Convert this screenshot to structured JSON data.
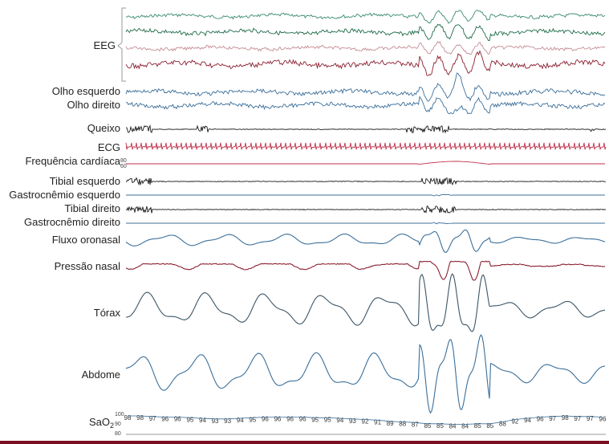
{
  "chart_data": {
    "type": "line",
    "title": "",
    "channels": [
      {
        "key": "eeg1",
        "label": "",
        "color": "#3a8a6e",
        "kind": "eeg"
      },
      {
        "key": "eeg2",
        "label": "",
        "color": "#1f6b4a",
        "kind": "eeg"
      },
      {
        "key": "eeg3",
        "label": "",
        "color": "#c48d95",
        "kind": "eeg"
      },
      {
        "key": "eeg4",
        "label": "",
        "color": "#8a1f30",
        "kind": "eeg"
      },
      {
        "key": "eye_left",
        "label": "Olho esquerdo",
        "color": "#3b6f9a",
        "kind": "eog"
      },
      {
        "key": "eye_right",
        "label": "Olho direito",
        "color": "#3b6f9a",
        "kind": "eog"
      },
      {
        "key": "chin",
        "label": "Queixo",
        "color": "#1c1c1c",
        "kind": "emg"
      },
      {
        "key": "ecg",
        "label": "ECG",
        "color": "#c0304a",
        "kind": "ecg"
      },
      {
        "key": "hr",
        "label": "Frequência cardíaca",
        "color": "#c0304a",
        "kind": "hr",
        "scale": [
          "80",
          "60"
        ]
      },
      {
        "key": "tib_left",
        "label": "Tibial esquerdo",
        "color": "#1c1c1c",
        "kind": "leg"
      },
      {
        "key": "gastro_left",
        "label": "Gastrocnêmio esquerdo",
        "color": "#3b6f9a",
        "kind": "flat"
      },
      {
        "key": "tib_right",
        "label": "Tibial direito",
        "color": "#1c1c1c",
        "kind": "leg"
      },
      {
        "key": "gastro_right",
        "label": "Gastrocnêmio direito",
        "color": "#3b6f9a",
        "kind": "flat"
      },
      {
        "key": "flow",
        "label": "Fluxo oronasal",
        "color": "#3b6f9a",
        "kind": "resp"
      },
      {
        "key": "pressure",
        "label": "Pressão nasal",
        "color": "#8a1f30",
        "kind": "pressure"
      },
      {
        "key": "thorax",
        "label": "Tórax",
        "color": "#3b5566",
        "kind": "effort"
      },
      {
        "key": "abdomen",
        "label": "Abdome",
        "color": "#3b6f9a",
        "kind": "effort"
      }
    ],
    "eeg_group_label": "EEG",
    "sao2": {
      "label": "SaO",
      "label_sub": "2",
      "scale": [
        "100",
        "90",
        "80"
      ],
      "values": [
        "98",
        "98",
        "97",
        "96",
        "96",
        "95",
        "94",
        "93",
        "93",
        "94",
        "95",
        "96",
        "96",
        "96",
        "96",
        "95",
        "95",
        "94",
        "93",
        "92",
        "91",
        "89",
        "88",
        "87",
        "85",
        "85",
        "84",
        "84",
        "85",
        "85",
        "88",
        "92",
        "94",
        "96",
        "97",
        "98",
        "97",
        "97",
        "96"
      ]
    },
    "event_region": {
      "start": 0.62,
      "end": 0.75
    }
  },
  "colors": {
    "bottom_rule": "#7a1020",
    "axis": "#9a9a9a"
  }
}
